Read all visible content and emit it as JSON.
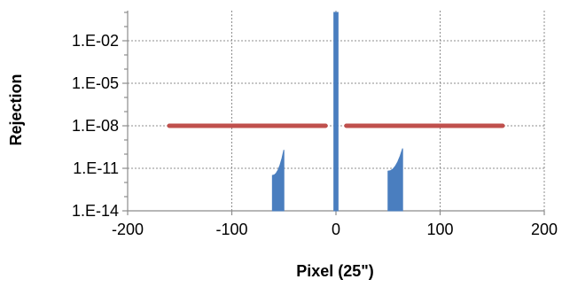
{
  "chart_data": {
    "type": "line",
    "xlabel": "Pixel (25\")",
    "ylabel": "Rejection",
    "xlim": [
      -200,
      200
    ],
    "ylim_log10": [
      -14,
      0
    ],
    "y_scale": "log",
    "x_ticks": [
      {
        "value": -200,
        "label": "-200"
      },
      {
        "value": -100,
        "label": "-100"
      },
      {
        "value": 0,
        "label": "0"
      },
      {
        "value": 100,
        "label": "100"
      },
      {
        "value": 200,
        "label": "200"
      }
    ],
    "y_ticks": [
      {
        "value": -2,
        "label": "1.E-02"
      },
      {
        "value": -5,
        "label": "1.E-05"
      },
      {
        "value": -8,
        "label": "1.E-08"
      },
      {
        "value": -11,
        "label": "1.E-11"
      },
      {
        "value": -14,
        "label": "1.E-14"
      }
    ],
    "grid": true,
    "legend": "none",
    "series": [
      {
        "color": "#4a7ebf",
        "style": "filled-spikes",
        "segments": [
          {
            "x_start": -61,
            "x_end": -50,
            "y_log10_start": -11.5,
            "y_log10_end": -9.7
          },
          {
            "x_start": -2,
            "x_end": 2,
            "y_log10_start": 0,
            "y_log10_end": 0
          },
          {
            "x_start": 50,
            "x_end": 64,
            "y_log10_start": -11.2,
            "y_log10_end": -9.6
          }
        ]
      },
      {
        "color": "#c0504d",
        "style": "thick-line",
        "segments": [
          {
            "x_start": -160,
            "x_end": -10,
            "y_log10": -8
          },
          {
            "x_start": 10,
            "x_end": 160,
            "y_log10": -8
          }
        ]
      }
    ]
  }
}
